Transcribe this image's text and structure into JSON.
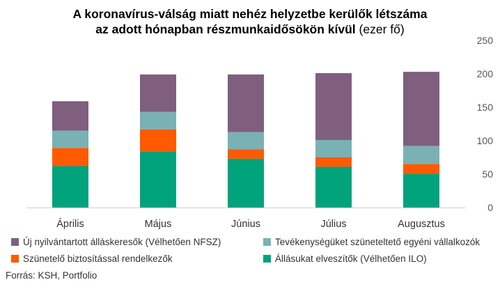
{
  "title": {
    "line1": "A koronavírus-válság miatt nehéz helyzetbe kerülők létszáma",
    "line2_bold": "az adott hónapban részmunkaidősökön kívül",
    "line2_unit": "(ezer fő)"
  },
  "source": "Forrás: KSH, Portfolio",
  "chart_data": {
    "type": "bar",
    "stacked": true,
    "categories": [
      "Április",
      "Május",
      "Június",
      "Július",
      "Augusztus"
    ],
    "ylim": [
      0,
      250
    ],
    "yticks": [
      0,
      50,
      100,
      150,
      200,
      250
    ],
    "y_axis_side": "right",
    "grid": false,
    "legend_position": "bottom",
    "series": [
      {
        "name": "Állásukat elveszítők (Vélhetően ILO)",
        "color": "#00A37B",
        "values": [
          62,
          84,
          73,
          61,
          50
        ]
      },
      {
        "name": "Szünetelő biztosítással rendelkezők",
        "color": "#FF5A00",
        "values": [
          27,
          33,
          14,
          14,
          15
        ]
      },
      {
        "name": "Tevékenységüket szüneteltető egyéni vállalkozók",
        "color": "#7AB1B4",
        "values": [
          26,
          26,
          26,
          26,
          27
        ]
      },
      {
        "name": "Új nyilvántartott álláskeresők (Vélhetően NFSZ)",
        "color": "#805E7E",
        "values": [
          44,
          56,
          86,
          100,
          111
        ]
      }
    ]
  },
  "legend": [
    {
      "label": "Új nyilvántartott álláskeresők (Vélhetően NFSZ)",
      "color": "#805E7E"
    },
    {
      "label": "Tevékenységüket szüneteltető egyéni vállalkozók",
      "color": "#7AB1B4"
    },
    {
      "label": "Szünetelő biztosítással rendelkezők",
      "color": "#FF5A00"
    },
    {
      "label": "Állásukat elveszítők (Vélhetően ILO)",
      "color": "#00A37B"
    }
  ]
}
